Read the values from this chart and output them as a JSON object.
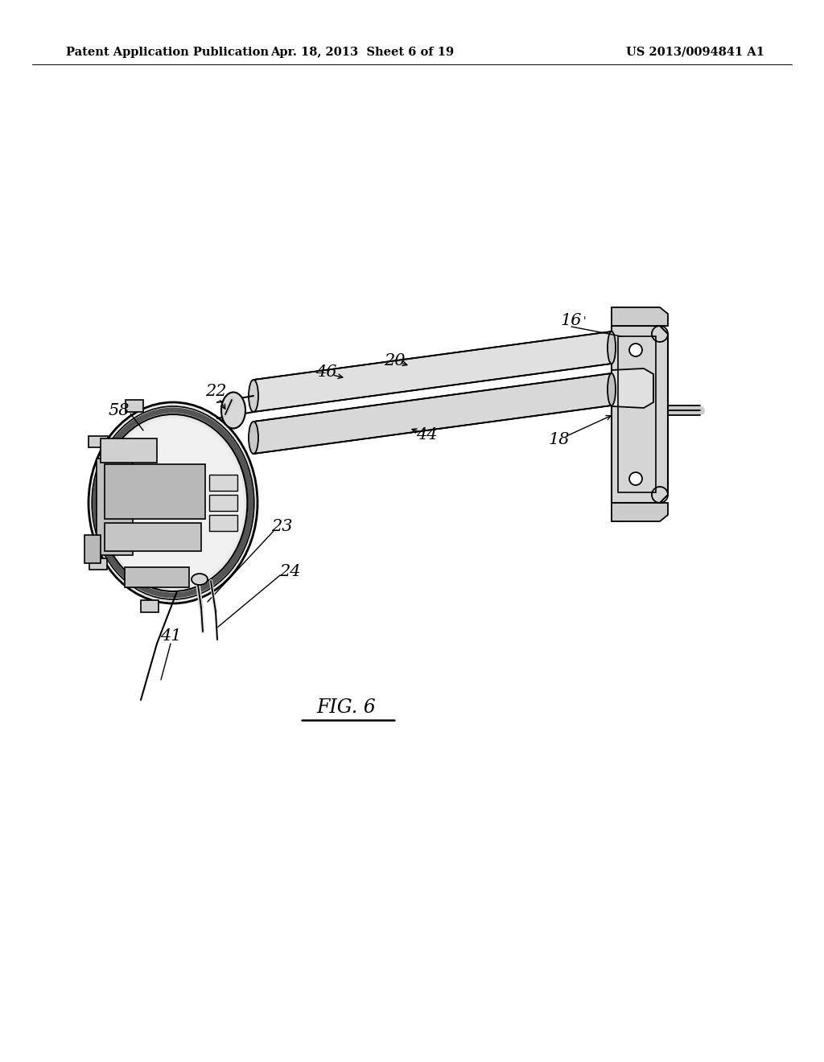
{
  "bg_color": "#ffffff",
  "header_left": "Patent Application Publication",
  "header_center": "Apr. 18, 2013  Sheet 6 of 19",
  "header_right": "US 2013/0094841 A1",
  "header_fontsize": 10.5,
  "fig_label": "FIG. 6",
  "fig_label_fontsize": 17
}
